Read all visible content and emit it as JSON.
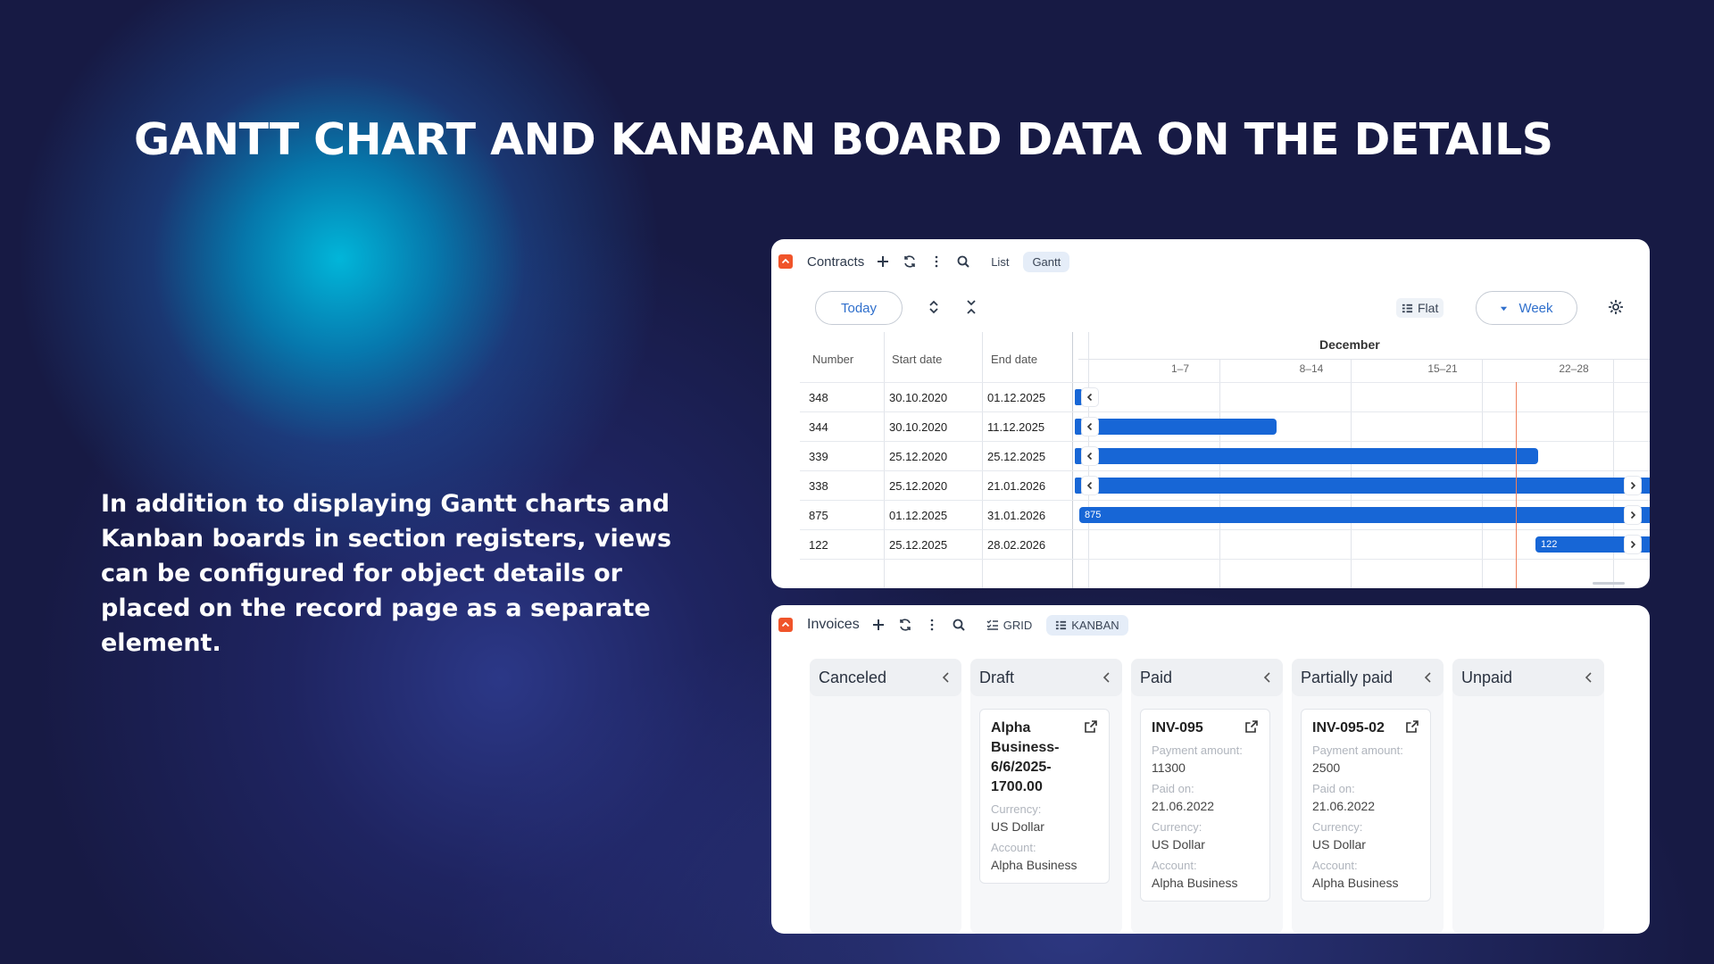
{
  "headline": "GANTT CHART AND KANBAN BOARD DATA ON THE DETAILS",
  "description": "In addition to displaying Gantt charts and Kanban boards in section registers, views can be configured for object details or placed on the record page as a separate element.",
  "colors": {
    "accent": "#1766d6",
    "collapse": "#f0542a",
    "today_line": "#f0805a"
  },
  "gantt_panel": {
    "title": "Contracts",
    "tabs": [
      {
        "label": "List",
        "active": false
      },
      {
        "label": "Gantt",
        "active": true
      }
    ],
    "today_label": "Today",
    "flat_label": "Flat",
    "week_label": "Week",
    "columns": {
      "number": "Number",
      "start": "Start date",
      "end": "End date"
    },
    "month": "December",
    "weeks": [
      "1–7",
      "8–14",
      "15–21",
      "22–28"
    ],
    "rows": [
      {
        "number": "348",
        "start": "30.10.2020",
        "end": "01.12.2025",
        "bar_label": ""
      },
      {
        "number": "344",
        "start": "30.10.2020",
        "end": "11.12.2025",
        "bar_label": ""
      },
      {
        "number": "339",
        "start": "25.12.2020",
        "end": "25.12.2025",
        "bar_label": ""
      },
      {
        "number": "338",
        "start": "25.12.2020",
        "end": "21.01.2026",
        "bar_label": ""
      },
      {
        "number": "875",
        "start": "01.12.2025",
        "end": "31.01.2026",
        "bar_label": "875"
      },
      {
        "number": "122",
        "start": "25.12.2025",
        "end": "28.02.2026",
        "bar_label": "122"
      }
    ]
  },
  "kanban_panel": {
    "title": "Invoices",
    "tabs": [
      {
        "label": "GRID",
        "active": false
      },
      {
        "label": "KANBAN",
        "active": true
      }
    ],
    "columns": [
      {
        "title": "Canceled",
        "cards": []
      },
      {
        "title": "Draft",
        "cards": [
          {
            "title": "Alpha Business-6/6/2025-1700.00",
            "fields": [
              {
                "label": "Currency:",
                "value": "US Dollar"
              },
              {
                "label": "Account:",
                "value": "Alpha Business"
              }
            ]
          }
        ]
      },
      {
        "title": "Paid",
        "cards": [
          {
            "title": "INV-095",
            "fields": [
              {
                "label": "Payment amount:",
                "value": "11300"
              },
              {
                "label": "Paid on:",
                "value": "21.06.2022"
              },
              {
                "label": "Currency:",
                "value": "US Dollar"
              },
              {
                "label": "Account:",
                "value": "Alpha Business"
              }
            ]
          }
        ]
      },
      {
        "title": "Partially paid",
        "cards": [
          {
            "title": "INV-095-02",
            "fields": [
              {
                "label": "Payment amount:",
                "value": "2500"
              },
              {
                "label": "Paid on:",
                "value": "21.06.2022"
              },
              {
                "label": "Currency:",
                "value": "US Dollar"
              },
              {
                "label": "Account:",
                "value": "Alpha Business"
              }
            ]
          }
        ]
      },
      {
        "title": "Unpaid",
        "cards": []
      }
    ]
  }
}
